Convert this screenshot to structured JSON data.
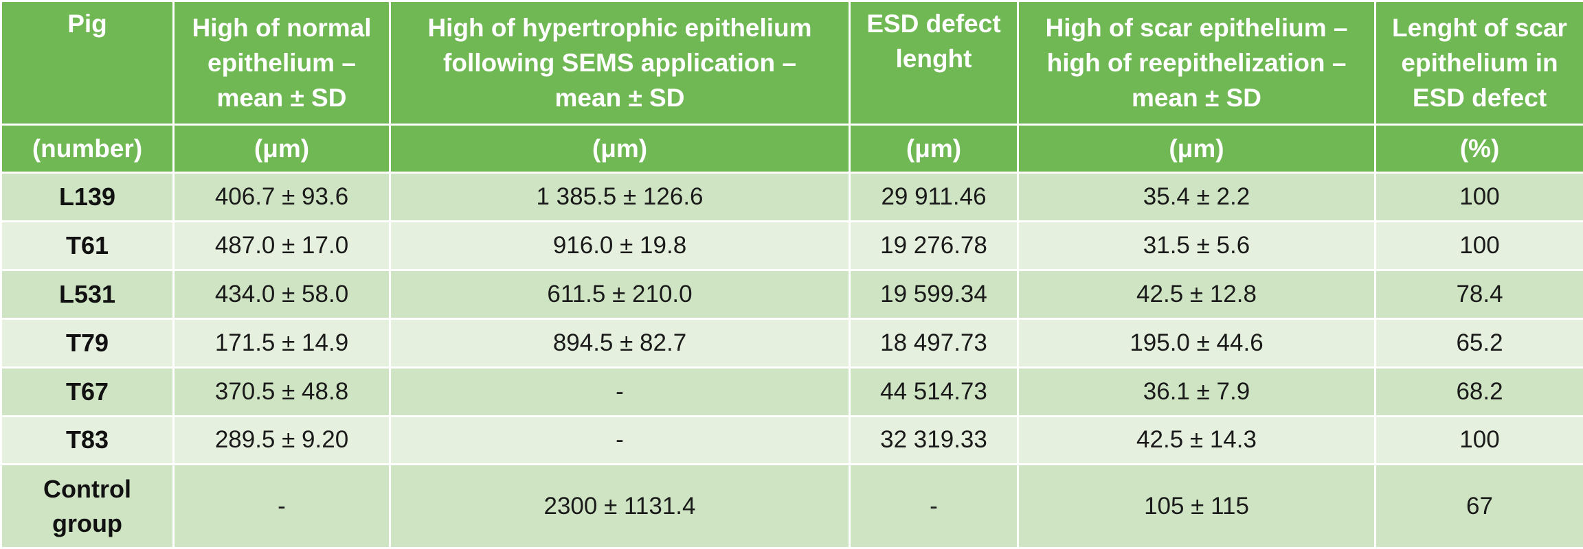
{
  "table": {
    "header": [
      "Pig",
      "High of normal epithelium – mean ± SD",
      "High of hypertrophic epithelium following SEMS application – mean ± SD",
      "ESD defect lenght",
      "High of scar epithelium – high of reepithelization – mean ± SD",
      "Lenght of scar epithelium in ESD defect"
    ],
    "units": [
      "(number)",
      "(μm)",
      "(μm)",
      "(μm)",
      "(μm)",
      "(%)"
    ],
    "rows": [
      [
        "L139",
        "406.7 ± 93.6",
        "1 385.5 ± 126.6",
        "29 911.46",
        "35.4 ± 2.2",
        "100"
      ],
      [
        "T61",
        "487.0 ± 17.0",
        "916.0 ± 19.8",
        "19 276.78",
        "31.5 ± 5.6",
        "100"
      ],
      [
        "L531",
        "434.0 ± 58.0",
        "611.5 ± 210.0",
        "19 599.34",
        "42.5 ± 12.8",
        "78.4"
      ],
      [
        "T79",
        "171.5 ± 14.9",
        "894.5 ± 82.7",
        "18 497.73",
        "195.0 ± 44.6",
        "65.2"
      ],
      [
        "T67",
        "370.5 ± 48.8",
        "-",
        "44 514.73",
        "36.1 ± 7.9",
        "68.2"
      ],
      [
        "T83",
        "289.5 ± 9.20",
        "-",
        "32 319.33",
        "42.5 ± 14.3",
        "100"
      ],
      [
        "Control group",
        "-",
        "2300 ± 1131.4",
        "-",
        "105 ± 115",
        "67"
      ]
    ]
  },
  "colors": {
    "header_bg": "#70b854",
    "row_dark": "#cfe4c3",
    "row_light": "#e6f0de"
  }
}
